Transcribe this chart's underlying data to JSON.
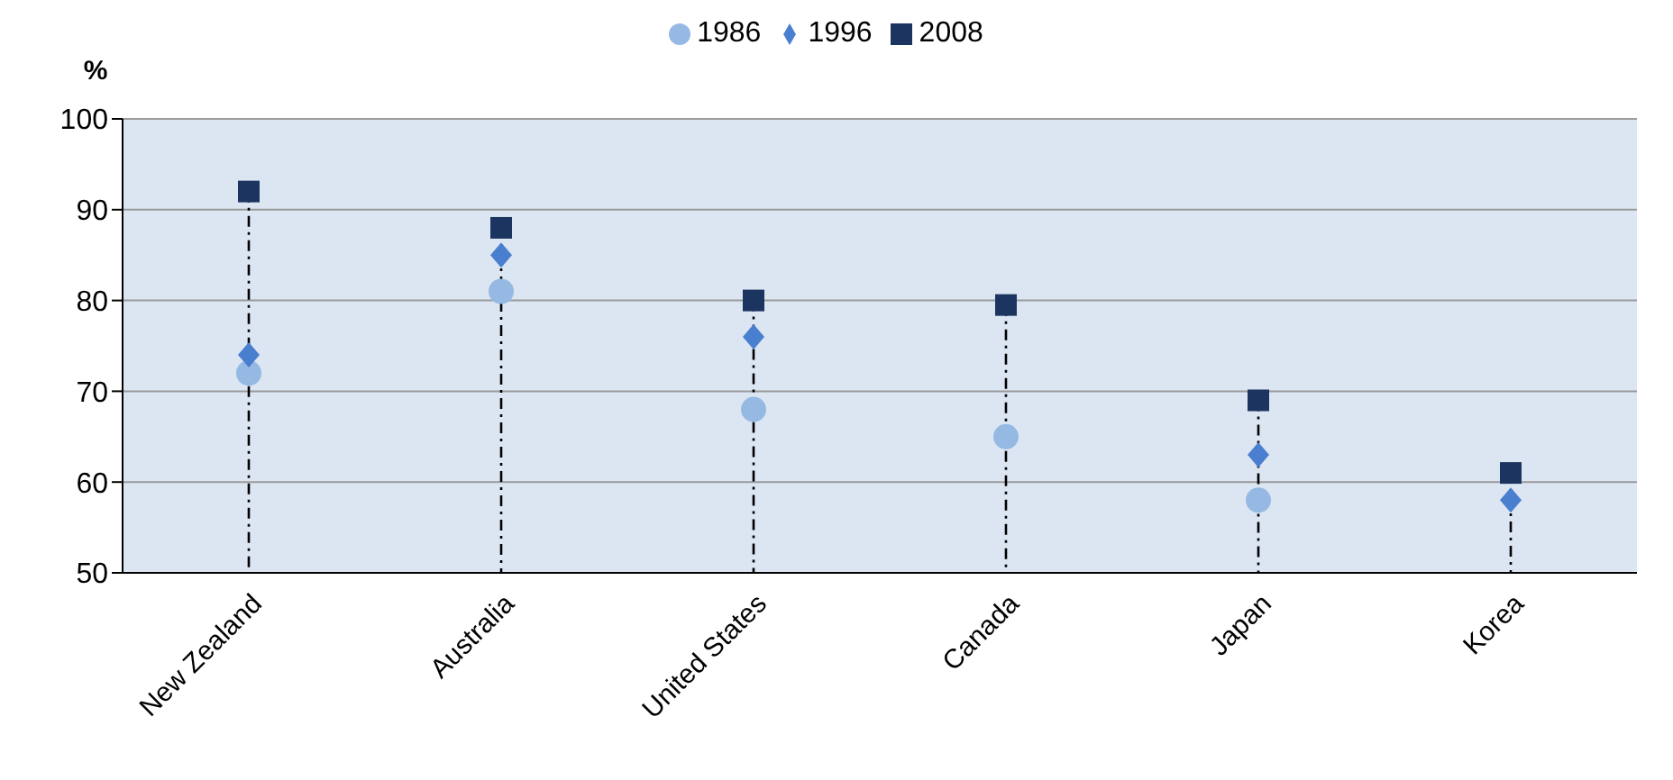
{
  "chart_data": {
    "type": "scatter",
    "ylabel": "%",
    "categories": [
      "New Zealand",
      "Australia",
      "United States",
      "Canada",
      "Japan",
      "Korea"
    ],
    "series": [
      {
        "name": "1986",
        "color": "#95b9e3",
        "marker": "circle",
        "values": [
          72,
          81,
          68,
          65,
          58,
          null
        ]
      },
      {
        "name": "1996",
        "color": "#4a7fd0",
        "marker": "diamond",
        "values": [
          74,
          85,
          76,
          null,
          63,
          58
        ]
      },
      {
        "name": "2008",
        "color": "#1b3560",
        "marker": "square",
        "type": "lollipop",
        "line_style": "dashdot",
        "values": [
          92,
          88,
          80,
          79.5,
          69,
          61
        ]
      }
    ],
    "ylim": [
      50,
      100
    ],
    "yticks": [
      50,
      60,
      70,
      80,
      90,
      100
    ],
    "grid": "y",
    "legend": "top"
  }
}
